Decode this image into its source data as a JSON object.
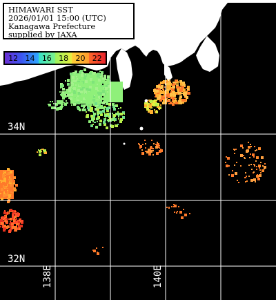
{
  "title": {
    "line1": "HIMAWARI SST",
    "line2": "2026/01/01 15:00 (UTC)",
    "line3": "Kanagawa Prefecture",
    "line4": "supplied by JAXA"
  },
  "colorbar": {
    "labels": [
      "12",
      "14",
      "16",
      "18",
      "20",
      "22"
    ],
    "colors": [
      "#6b2fd4",
      "#2d6bff",
      "#35e0c8",
      "#9cf25e",
      "#ffd23a",
      "#ff4a1a"
    ]
  },
  "axes": {
    "lat_labels": [
      "34N",
      "32N"
    ],
    "lon_labels": [
      "138E",
      "140E"
    ]
  },
  "palette": {
    "land": "#ffffff",
    "sea": "#000000",
    "grid": "#ffffff",
    "warm_orange": "#ff7a2a",
    "hot_red": "#e8321e",
    "mid_yellow": "#ffb030",
    "green": "#8ff07a",
    "lime": "#b8f04a"
  }
}
